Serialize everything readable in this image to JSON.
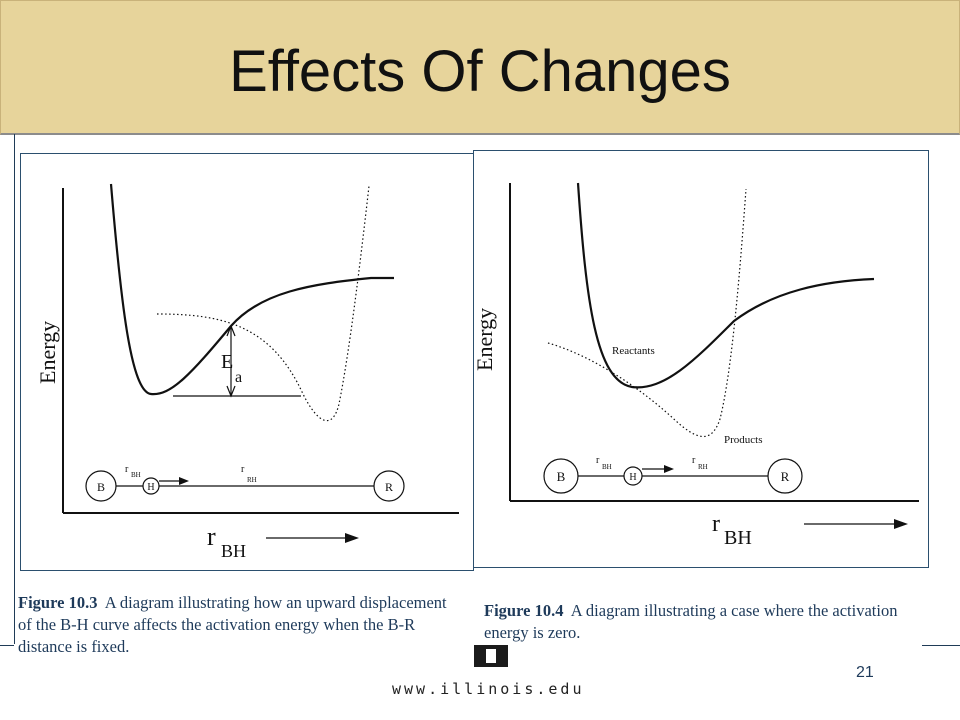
{
  "slide": {
    "title": "Effects Of Changes",
    "page_number": "21",
    "footer_url": "www.illinois.edu"
  },
  "figure_left": {
    "y_axis_label": "Energy",
    "ea_main": "E",
    "ea_sub": "a",
    "x_axis_main": "r",
    "x_axis_sub": "BH",
    "atoms": {
      "b": "B",
      "h": "H",
      "r": "R"
    },
    "r_bh_main": "r",
    "r_bh_sub": "BH",
    "r_rh_main": "r",
    "r_rh_sub": "RH",
    "caption_label": "Figure 10.3",
    "caption_text": "A diagram illustrating how an upward displacement of the B-H curve affects the activation energy when the B-R distance is fixed."
  },
  "figure_right": {
    "y_axis_label": "Energy",
    "reactants_label": "Reactants",
    "products_label": "Products",
    "x_axis_main": "r",
    "x_axis_sub": "BH",
    "atoms": {
      "b": "B",
      "h": "H",
      "r": "R"
    },
    "r_bh_main": "r",
    "r_bh_sub": "BH",
    "r_rh_main": "r",
    "r_rh_sub": "RH",
    "caption_label": "Figure 10.4",
    "caption_text": "A diagram illustrating a case where the activation energy is zero."
  },
  "colors": {
    "title_bar": "#e7d49b",
    "caption_text": "#1e3a5a",
    "panel_border": "#2b4f6e"
  }
}
